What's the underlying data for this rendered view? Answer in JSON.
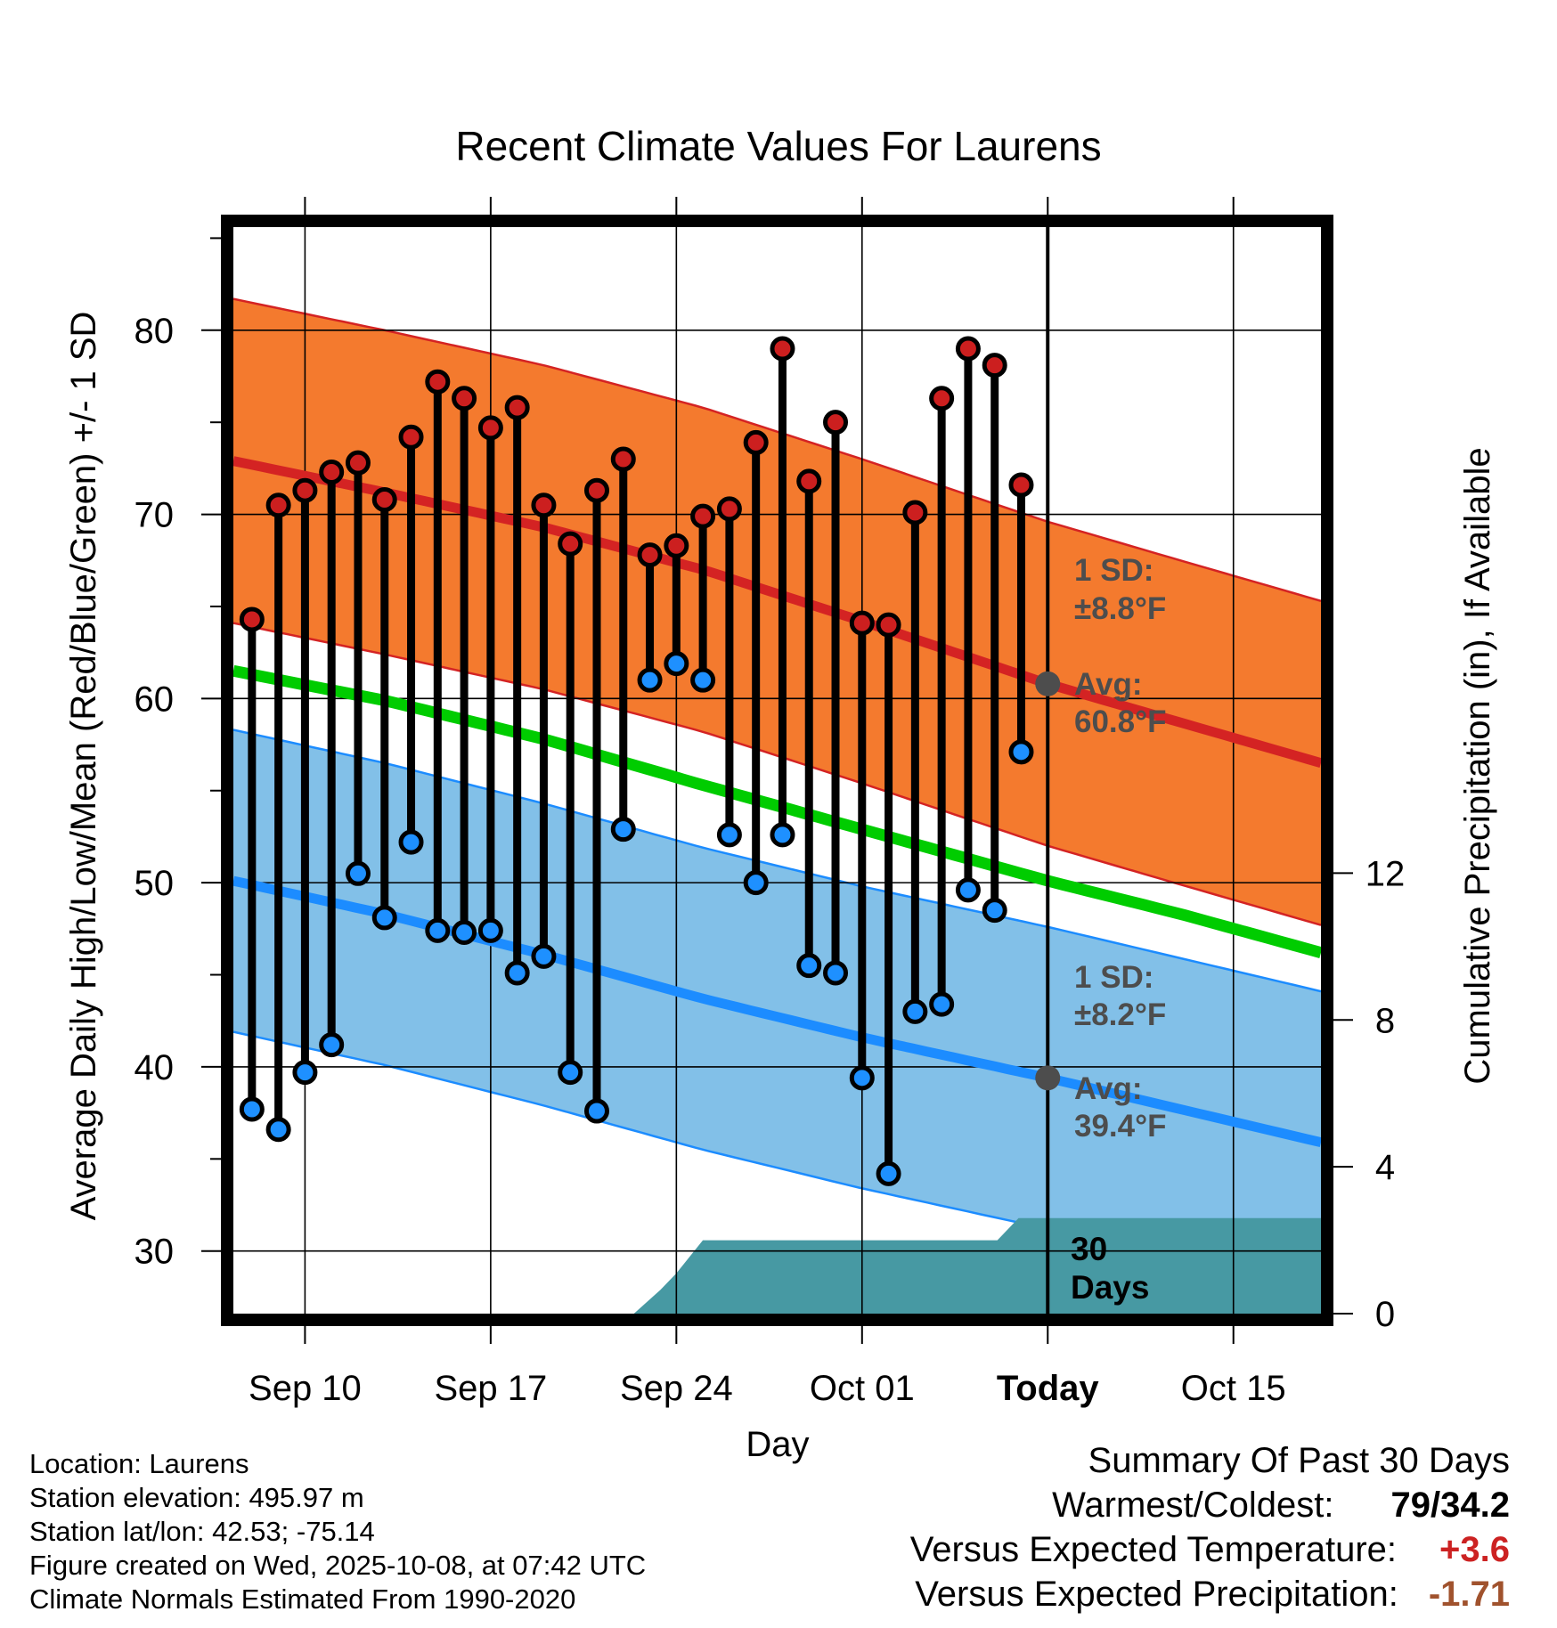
{
  "chart_data": {
    "type": "line",
    "title": "Recent Climate Values For Laurens",
    "xlabel": "Day",
    "ylabel": "Average Daily High/Low/Mean (Red/Blue/Green) +/- 1 SD",
    "y2label": "Cumulative Precipitation (in), If Available",
    "x_ticks": [
      {
        "day": 3,
        "label": "Sep 10"
      },
      {
        "day": 10,
        "label": "Sep 17"
      },
      {
        "day": 17,
        "label": "Sep 24"
      },
      {
        "day": 24,
        "label": "Oct 01"
      },
      {
        "day": 31,
        "label": "Today"
      },
      {
        "day": 38,
        "label": "Oct 15"
      }
    ],
    "x_range_days": [
      0.3,
      41.3
    ],
    "ylim": [
      26.6,
      85.6
    ],
    "y_ticks": [
      30,
      40,
      50,
      60,
      70,
      80
    ],
    "y2lim": [
      0,
      29.6
    ],
    "y2_ticks": [
      0,
      4,
      8,
      12
    ],
    "today_day": 31,
    "highs": [
      64.3,
      70.5,
      71.3,
      72.3,
      72.8,
      70.8,
      74.2,
      77.2,
      76.3,
      74.7,
      75.8,
      70.5,
      68.4,
      71.3,
      73.0,
      67.8,
      68.3,
      69.9,
      70.3,
      73.9,
      79.0,
      71.8,
      75.0,
      64.1,
      64.0,
      70.1,
      76.3,
      79.0,
      78.1,
      71.6
    ],
    "lows": [
      37.7,
      36.6,
      39.7,
      41.2,
      50.5,
      48.1,
      52.2,
      47.4,
      47.3,
      47.4,
      45.1,
      46.0,
      39.7,
      37.6,
      52.9,
      61.0,
      61.9,
      61.0,
      52.6,
      50.0,
      52.6,
      45.5,
      45.1,
      39.4,
      34.2,
      43.0,
      43.4,
      49.6,
      48.5,
      57.1
    ],
    "normal_high": {
      "days": [
        0.3,
        6,
        12,
        18,
        24,
        31,
        36,
        41.3
      ],
      "mean": [
        72.9,
        71.2,
        69.3,
        67.0,
        64.2,
        60.8,
        58.7,
        56.5
      ],
      "sd": 8.8
    },
    "normal_low": {
      "days": [
        0.3,
        6,
        12,
        18,
        24,
        31,
        36,
        41.3
      ],
      "mean": [
        50.1,
        48.3,
        46.1,
        43.7,
        41.6,
        39.4,
        37.7,
        35.9
      ],
      "sd": 8.2
    },
    "normal_mean": {
      "days": [
        0.3,
        6,
        12,
        18,
        24,
        31,
        36,
        41.3
      ],
      "mean": [
        61.5,
        59.9,
        57.8,
        55.3,
        52.9,
        50.1,
        48.3,
        46.2
      ]
    },
    "precip_cumulative": {
      "days": [
        15.4,
        16.4,
        17.0,
        18.0,
        29.1,
        29.9,
        41.3
      ],
      "values": [
        0,
        0.65,
        1.1,
        2.0,
        2.0,
        2.6,
        2.6
      ]
    },
    "colors": {
      "high_band": "#f47a2e",
      "high_line": "#d42323",
      "high_marker": "#cc1f1f",
      "low_band": "#82c0e8",
      "low_line": "#1c8cff",
      "low_marker": "#1e90ff",
      "mean_line": "#00cc00",
      "precip": "#4799a3",
      "annotation": "#4d4d4d",
      "positive": "#cc2222",
      "negative": "#a0522d"
    },
    "annotations": {
      "high_sd_label": "1 SD:",
      "high_sd_value": "±8.8°F",
      "high_avg_label": "Avg:",
      "high_avg_value": "60.8°F",
      "low_sd_label": "1 SD:",
      "low_sd_value": "±8.2°F",
      "low_avg_label": "Avg:",
      "low_avg_value": "39.4°F",
      "days_number": "30",
      "days_word": "Days"
    }
  },
  "info": {
    "location": "Location: Laurens",
    "elevation": "Station elevation: 495.97 m",
    "latlon": "Station lat/lon: 42.53; -75.14",
    "created": "Figure created on Wed, 2025-10-08, at 07:42 UTC",
    "normals": "Climate Normals Estimated From 1990-2020"
  },
  "summary": {
    "title": "Summary Of Past 30 Days",
    "warmest_coldest_label": "Warmest/Coldest:",
    "warmest_coldest_value": "79/34.2",
    "temp_label": "Versus Expected Temperature:",
    "temp_value": "+3.6",
    "precip_label": "Versus Expected Precipitation:",
    "precip_value": "-1.71"
  }
}
